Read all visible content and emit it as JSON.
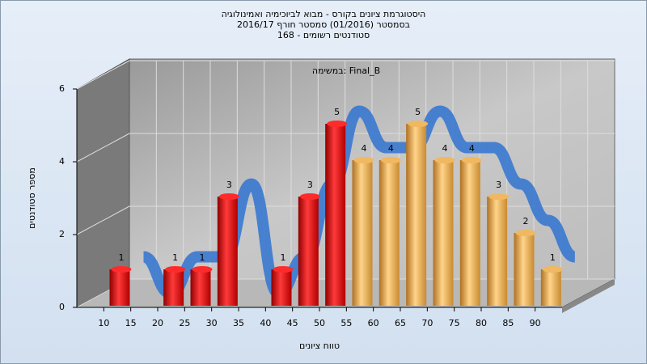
{
  "chart_data": {
    "type": "histogram",
    "title": [
      "היסטוגרמת ציונים בקורס - מבוא לביוכימיה ואמינולוגיה",
      "בסמסטר  (01/2016)  סמסטר חורף 2016/17",
      "סטודנטים רשומים - 168"
    ],
    "annotation": "במשימה: Final_B",
    "xlabel": "טווח ציונים",
    "ylabel": "מספר סטודנטים",
    "bins": [
      10,
      15,
      20,
      25,
      30,
      35,
      40,
      45,
      50,
      55,
      60,
      65,
      70,
      75,
      80,
      85,
      90,
      95
    ],
    "counts": [
      1,
      0,
      1,
      1,
      3,
      0,
      1,
      3,
      5,
      4,
      4,
      5,
      4,
      4,
      3,
      2,
      1
    ],
    "colors": [
      "red",
      "red",
      "red",
      "red",
      "red",
      "red",
      "red",
      "red",
      "red",
      "orange",
      "orange",
      "orange",
      "orange",
      "orange",
      "orange",
      "orange",
      "orange"
    ],
    "xlim": [
      5,
      95
    ],
    "xticks": [
      10,
      15,
      20,
      25,
      30,
      35,
      40,
      45,
      50,
      55,
      60,
      65,
      70,
      75,
      80,
      85,
      90
    ],
    "ylim": [
      0,
      6
    ],
    "yticks": [
      0,
      2,
      4,
      6
    ],
    "grid": true
  }
}
